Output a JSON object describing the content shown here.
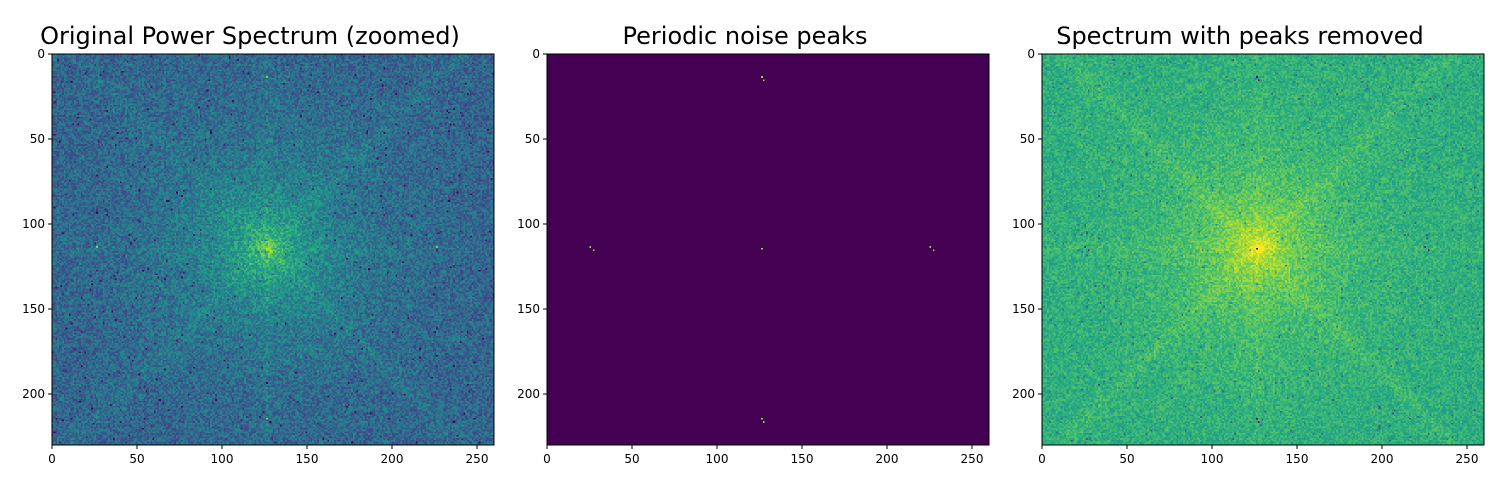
{
  "chart_data": [
    {
      "type": "heatmap",
      "title": "Original Power Spectrum (zoomed)",
      "colormap": "viridis",
      "xlim": [
        0,
        260
      ],
      "ylim": [
        230,
        0
      ],
      "xticks": [
        0,
        50,
        100,
        150,
        200,
        250
      ],
      "yticks": [
        0,
        50,
        100,
        150,
        200
      ],
      "background_level": 0.32,
      "noise_amplitude": 0.14,
      "center": [
        126,
        114
      ],
      "center_level": 0.75,
      "diagonal_streaks": true,
      "peaks": [
        {
          "x": 126,
          "y": 13,
          "value": 0.8
        },
        {
          "x": 26,
          "y": 113,
          "value": 0.8
        },
        {
          "x": 226,
          "y": 113,
          "value": 0.8
        },
        {
          "x": 126,
          "y": 214,
          "value": 0.8
        }
      ]
    },
    {
      "type": "heatmap",
      "title": "Periodic noise peaks",
      "colormap": "viridis",
      "xlim": [
        0,
        260
      ],
      "ylim": [
        230,
        0
      ],
      "xticks": [
        0,
        50,
        100,
        150,
        200,
        250
      ],
      "yticks": [
        0,
        50,
        100,
        150,
        200
      ],
      "background_level": 0.0,
      "noise_amplitude": 0.0,
      "peaks": [
        {
          "x": 126,
          "y": 13,
          "value": 0.85
        },
        {
          "x": 127,
          "y": 15,
          "value": 0.85
        },
        {
          "x": 25,
          "y": 113,
          "value": 0.85
        },
        {
          "x": 27,
          "y": 115,
          "value": 0.85
        },
        {
          "x": 126,
          "y": 114,
          "value": 0.85
        },
        {
          "x": 225,
          "y": 113,
          "value": 0.85
        },
        {
          "x": 227,
          "y": 115,
          "value": 0.85
        },
        {
          "x": 126,
          "y": 214,
          "value": 0.85
        },
        {
          "x": 127,
          "y": 216,
          "value": 0.85
        }
      ]
    },
    {
      "type": "heatmap",
      "title": "Spectrum with peaks removed",
      "colormap": "viridis",
      "xlim": [
        0,
        260
      ],
      "ylim": [
        230,
        0
      ],
      "xticks": [
        0,
        50,
        100,
        150,
        200,
        250
      ],
      "yticks": [
        0,
        50,
        100,
        150,
        200
      ],
      "background_level": 0.62,
      "noise_amplitude": 0.1,
      "center": [
        126,
        114
      ],
      "center_level": 0.95,
      "diagonal_streaks": true,
      "holes": [
        {
          "x": 126,
          "y": 13
        },
        {
          "x": 127,
          "y": 15
        },
        {
          "x": 25,
          "y": 113
        },
        {
          "x": 27,
          "y": 115
        },
        {
          "x": 126,
          "y": 114
        },
        {
          "x": 225,
          "y": 113
        },
        {
          "x": 227,
          "y": 115
        },
        {
          "x": 126,
          "y": 214
        },
        {
          "x": 127,
          "y": 216
        }
      ]
    }
  ]
}
